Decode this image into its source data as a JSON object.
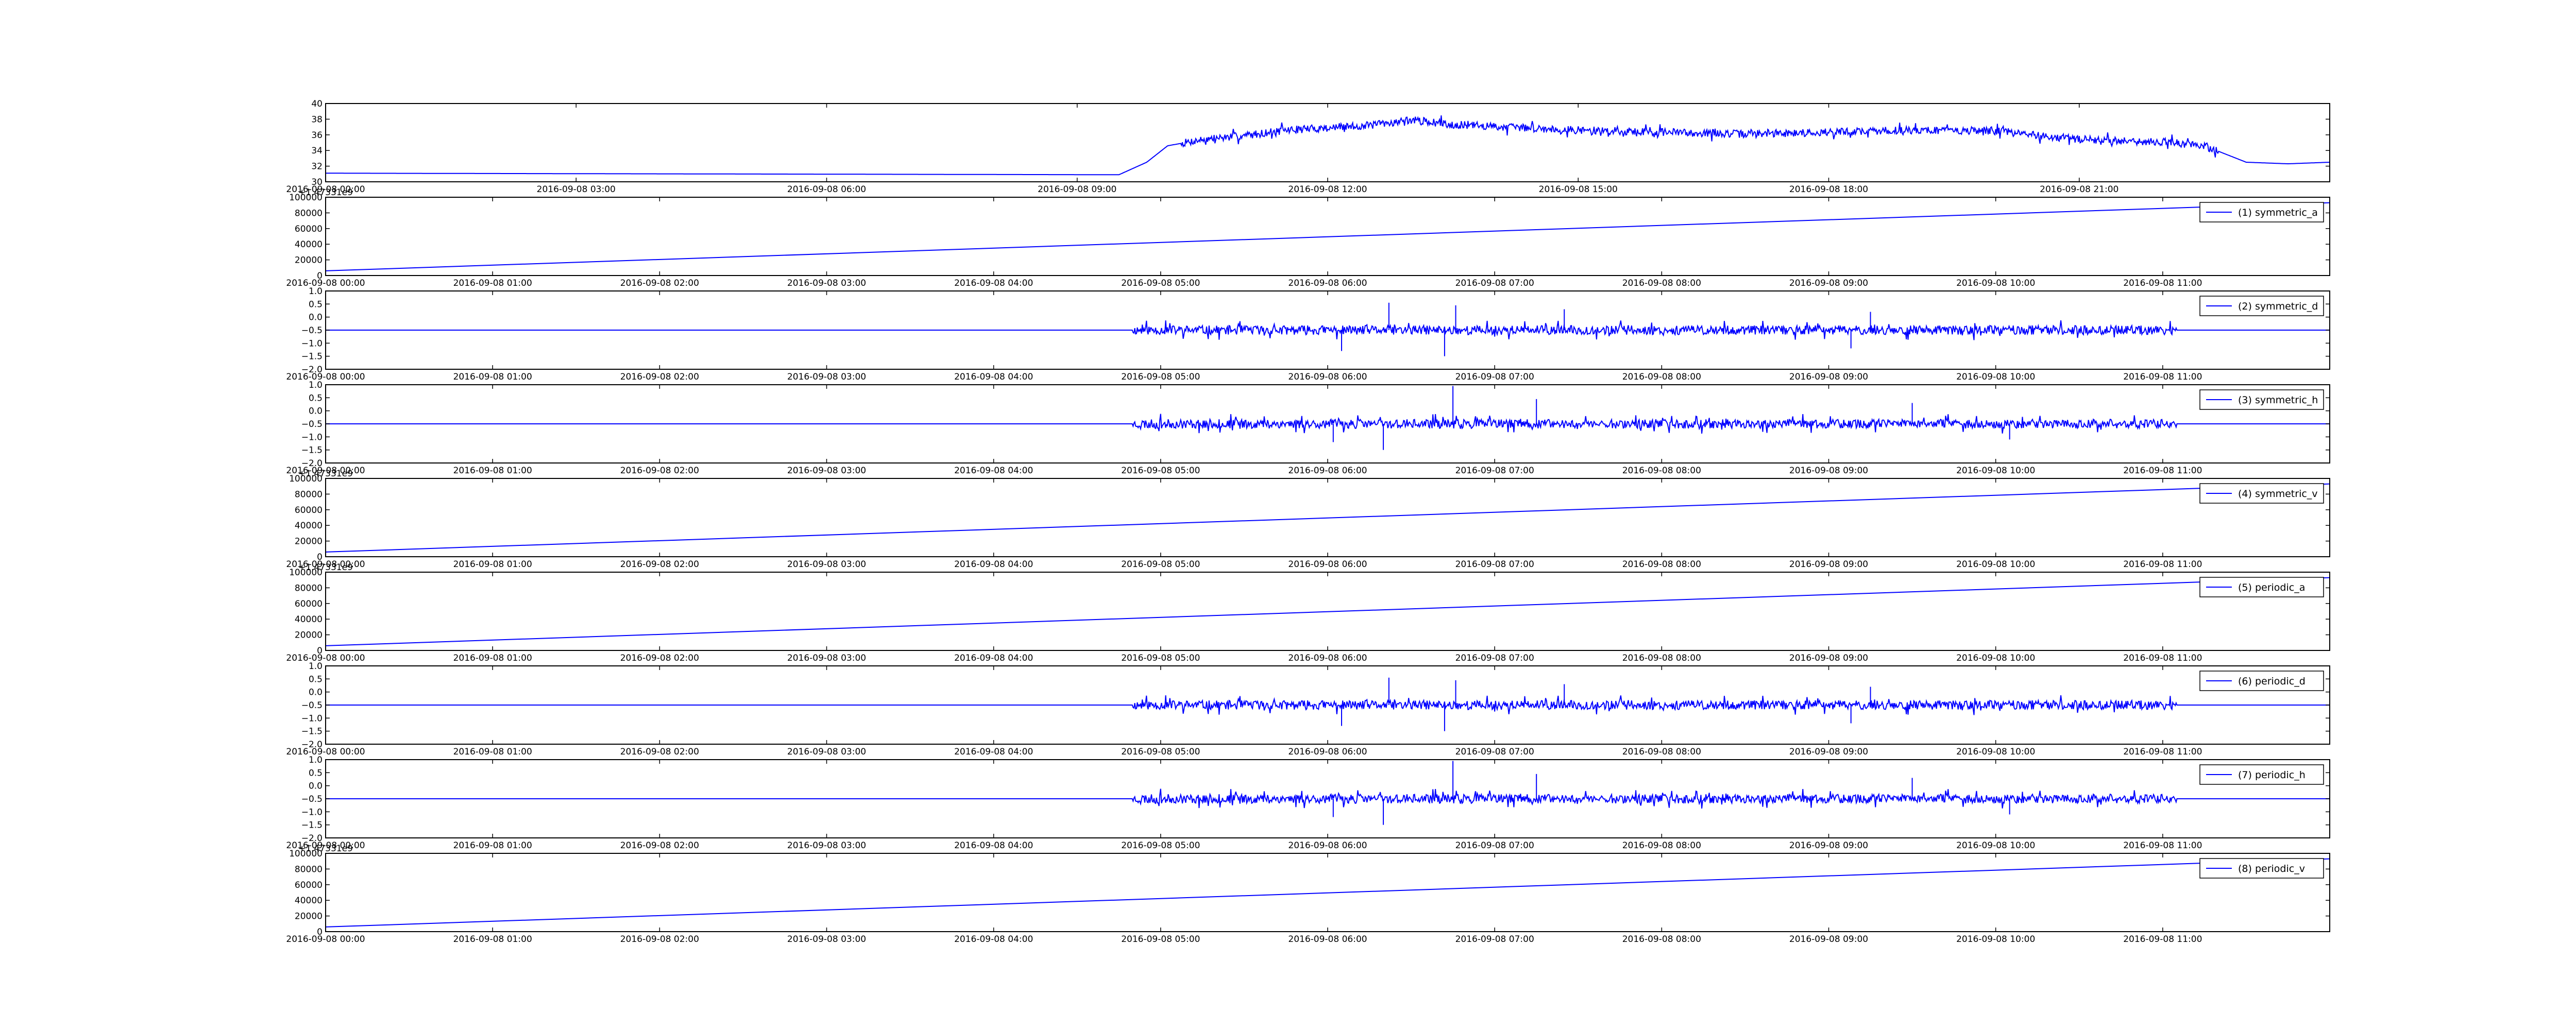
{
  "style": {
    "line_color": "#0000ff",
    "frame_color": "#000000",
    "background": "#ffffff"
  },
  "chart_data": [
    {
      "type": "line",
      "title": "",
      "xlabel": "",
      "ylabel": "",
      "grid": false,
      "legend": null,
      "ylim": [
        30,
        40
      ],
      "yticks": [
        30,
        32,
        34,
        36,
        38,
        40
      ],
      "xlim": [
        "2016-09-08 00:00",
        "2016-09-09 00:00"
      ],
      "xticks": [
        "2016-09-08 00:00",
        "2016-09-08 03:00",
        "2016-09-08 06:00",
        "2016-09-08 09:00",
        "2016-09-08 12:00",
        "2016-09-08 15:00",
        "2016-09-08 18:00",
        "2016-09-08 21:00"
      ],
      "signal": "temperature",
      "points": [
        [
          "2016-09-08 00:00",
          31.1
        ],
        [
          "2016-09-08 09:30",
          30.9
        ],
        [
          "2016-09-08 09:50",
          32.5
        ],
        [
          "2016-09-08 10:05",
          34.6
        ],
        [
          "2016-09-08 10:30",
          35.4
        ],
        [
          "2016-09-08 11:00",
          35.9
        ],
        [
          "2016-09-08 11:30",
          36.6
        ],
        [
          "2016-09-08 12:30",
          37.2
        ],
        [
          "2016-09-08 13:00",
          37.9
        ],
        [
          "2016-09-08 13:30",
          37.3
        ],
        [
          "2016-09-08 15:00",
          36.6
        ],
        [
          "2016-09-08 17:00",
          36.1
        ],
        [
          "2016-09-08 19:00",
          36.6
        ],
        [
          "2016-09-08 20:00",
          36.5
        ],
        [
          "2016-09-08 21:00",
          35.4
        ],
        [
          "2016-09-08 22:00",
          35.1
        ],
        [
          "2016-09-08 22:30",
          34.6
        ],
        [
          "2016-09-08 23:00",
          32.5
        ],
        [
          "2016-09-08 23:30",
          32.3
        ],
        [
          "2016-09-09 00:00",
          32.5
        ]
      ],
      "noise": {
        "start": "2016-09-08 10:15",
        "end": "2016-09-08 22:40",
        "amplitude": 0.9
      }
    },
    {
      "type": "line",
      "grid": false,
      "legend": {
        "label": "(1) symmetric_a",
        "placement": "upper right"
      },
      "offset_text": "+1.47331e9",
      "ylim": [
        0,
        100000
      ],
      "yticks": [
        0,
        20000,
        40000,
        60000,
        80000,
        100000
      ],
      "xlim": [
        "2016-09-08 00:00",
        "2016-09-08 12:00"
      ],
      "xticks": [
        "2016-09-08 00:00",
        "2016-09-08 01:00",
        "2016-09-08 02:00",
        "2016-09-08 03:00",
        "2016-09-08 04:00",
        "2016-09-08 05:00",
        "2016-09-08 06:00",
        "2016-09-08 07:00",
        "2016-09-08 08:00",
        "2016-09-08 09:00",
        "2016-09-08 10:00",
        "2016-09-08 11:00"
      ],
      "signal": "ramp",
      "points": [
        [
          "2016-09-08 00:00",
          6000
        ],
        [
          "2016-09-08 12:00",
          93000
        ]
      ]
    },
    {
      "type": "line",
      "grid": false,
      "legend": {
        "label": "(2) symmetric_d",
        "placement": "upper right"
      },
      "ylim": [
        -2.0,
        1.0
      ],
      "yticks": [
        -2.0,
        -1.5,
        -1.0,
        -0.5,
        0.0,
        0.5,
        1.0
      ],
      "xlim": [
        "2016-09-08 00:00",
        "2016-09-08 12:00"
      ],
      "xticks": [
        "2016-09-08 00:00",
        "2016-09-08 01:00",
        "2016-09-08 02:00",
        "2016-09-08 03:00",
        "2016-09-08 04:00",
        "2016-09-08 05:00",
        "2016-09-08 06:00",
        "2016-09-08 07:00",
        "2016-09-08 08:00",
        "2016-09-08 09:00",
        "2016-09-08 10:00",
        "2016-09-08 11:00"
      ],
      "signal": "coefficients",
      "baseline": -0.5,
      "points": [
        [
          "2016-09-08 00:00",
          -0.5
        ],
        [
          "2016-09-08 12:00",
          -0.5
        ]
      ],
      "noise": {
        "start": "2016-09-08 04:50",
        "end": "2016-09-08 11:05",
        "amplitude": 0.35,
        "seed": 11
      },
      "spikes": [
        [
          "2016-09-08 06:05",
          -1.3
        ],
        [
          "2016-09-08 06:22",
          0.55
        ],
        [
          "2016-09-08 06:42",
          -1.5
        ],
        [
          "2016-09-08 06:46",
          0.45
        ],
        [
          "2016-09-08 07:25",
          0.3
        ],
        [
          "2016-09-08 09:15",
          0.2
        ],
        [
          "2016-09-08 09:08",
          -1.2
        ]
      ]
    },
    {
      "type": "line",
      "grid": false,
      "legend": {
        "label": "(3) symmetric_h",
        "placement": "upper right"
      },
      "ylim": [
        -2.0,
        1.0
      ],
      "yticks": [
        -2.0,
        -1.5,
        -1.0,
        -0.5,
        0.0,
        0.5,
        1.0
      ],
      "xlim": [
        "2016-09-08 00:00",
        "2016-09-08 12:00"
      ],
      "xticks": [
        "2016-09-08 00:00",
        "2016-09-08 01:00",
        "2016-09-08 02:00",
        "2016-09-08 03:00",
        "2016-09-08 04:00",
        "2016-09-08 05:00",
        "2016-09-08 06:00",
        "2016-09-08 07:00",
        "2016-09-08 08:00",
        "2016-09-08 09:00",
        "2016-09-08 10:00",
        "2016-09-08 11:00"
      ],
      "signal": "coefficients",
      "baseline": -0.5,
      "points": [
        [
          "2016-09-08 00:00",
          -0.5
        ],
        [
          "2016-09-08 12:00",
          -0.5
        ]
      ],
      "noise": {
        "start": "2016-09-08 04:50",
        "end": "2016-09-08 11:05",
        "amplitude": 0.35,
        "seed": 23
      },
      "spikes": [
        [
          "2016-09-08 06:45",
          0.95
        ],
        [
          "2016-09-08 06:02",
          -1.2
        ],
        [
          "2016-09-08 06:20",
          -1.5
        ],
        [
          "2016-09-08 07:15",
          0.45
        ],
        [
          "2016-09-08 09:30",
          0.3
        ],
        [
          "2016-09-08 10:05",
          -1.1
        ]
      ]
    },
    {
      "type": "line",
      "grid": false,
      "legend": {
        "label": "(4) symmetric_v",
        "placement": "upper right"
      },
      "offset_text": "+1.47331e9",
      "ylim": [
        0,
        100000
      ],
      "yticks": [
        0,
        20000,
        40000,
        60000,
        80000,
        100000
      ],
      "xlim": [
        "2016-09-08 00:00",
        "2016-09-08 12:00"
      ],
      "xticks": [
        "2016-09-08 00:00",
        "2016-09-08 01:00",
        "2016-09-08 02:00",
        "2016-09-08 03:00",
        "2016-09-08 04:00",
        "2016-09-08 05:00",
        "2016-09-08 06:00",
        "2016-09-08 07:00",
        "2016-09-08 08:00",
        "2016-09-08 09:00",
        "2016-09-08 10:00",
        "2016-09-08 11:00"
      ],
      "signal": "ramp",
      "points": [
        [
          "2016-09-08 00:00",
          6000
        ],
        [
          "2016-09-08 12:00",
          93000
        ]
      ]
    },
    {
      "type": "line",
      "grid": false,
      "legend": {
        "label": "(5) periodic_a",
        "placement": "upper right"
      },
      "offset_text": "+1.47331e9",
      "ylim": [
        0,
        100000
      ],
      "yticks": [
        0,
        20000,
        40000,
        60000,
        80000,
        100000
      ],
      "xlim": [
        "2016-09-08 00:00",
        "2016-09-08 12:00"
      ],
      "xticks": [
        "2016-09-08 00:00",
        "2016-09-08 01:00",
        "2016-09-08 02:00",
        "2016-09-08 03:00",
        "2016-09-08 04:00",
        "2016-09-08 05:00",
        "2016-09-08 06:00",
        "2016-09-08 07:00",
        "2016-09-08 08:00",
        "2016-09-08 09:00",
        "2016-09-08 10:00",
        "2016-09-08 11:00"
      ],
      "signal": "ramp",
      "points": [
        [
          "2016-09-08 00:00",
          6000
        ],
        [
          "2016-09-08 12:00",
          93000
        ]
      ]
    },
    {
      "type": "line",
      "grid": false,
      "legend": {
        "label": "(6) periodic_d",
        "placement": "upper right"
      },
      "ylim": [
        -2.0,
        1.0
      ],
      "yticks": [
        -2.0,
        -1.5,
        -1.0,
        -0.5,
        0.0,
        0.5,
        1.0
      ],
      "xlim": [
        "2016-09-08 00:00",
        "2016-09-08 12:00"
      ],
      "xticks": [
        "2016-09-08 00:00",
        "2016-09-08 01:00",
        "2016-09-08 02:00",
        "2016-09-08 03:00",
        "2016-09-08 04:00",
        "2016-09-08 05:00",
        "2016-09-08 06:00",
        "2016-09-08 07:00",
        "2016-09-08 08:00",
        "2016-09-08 09:00",
        "2016-09-08 10:00",
        "2016-09-08 11:00"
      ],
      "signal": "coefficients",
      "baseline": -0.5,
      "points": [
        [
          "2016-09-08 00:00",
          -0.5
        ],
        [
          "2016-09-08 12:00",
          -0.5
        ]
      ],
      "noise": {
        "start": "2016-09-08 04:50",
        "end": "2016-09-08 11:05",
        "amplitude": 0.35,
        "seed": 11
      },
      "spikes": [
        [
          "2016-09-08 06:05",
          -1.3
        ],
        [
          "2016-09-08 06:22",
          0.55
        ],
        [
          "2016-09-08 06:42",
          -1.5
        ],
        [
          "2016-09-08 06:46",
          0.45
        ],
        [
          "2016-09-08 07:25",
          0.3
        ],
        [
          "2016-09-08 09:15",
          0.2
        ],
        [
          "2016-09-08 09:08",
          -1.2
        ]
      ]
    },
    {
      "type": "line",
      "grid": false,
      "legend": {
        "label": "(7) periodic_h",
        "placement": "upper right"
      },
      "ylim": [
        -2.0,
        1.0
      ],
      "yticks": [
        -2.0,
        -1.5,
        -1.0,
        -0.5,
        0.0,
        0.5,
        1.0
      ],
      "xlim": [
        "2016-09-08 00:00",
        "2016-09-08 12:00"
      ],
      "xticks": [
        "2016-09-08 00:00",
        "2016-09-08 01:00",
        "2016-09-08 02:00",
        "2016-09-08 03:00",
        "2016-09-08 04:00",
        "2016-09-08 05:00",
        "2016-09-08 06:00",
        "2016-09-08 07:00",
        "2016-09-08 08:00",
        "2016-09-08 09:00",
        "2016-09-08 10:00",
        "2016-09-08 11:00"
      ],
      "signal": "coefficients",
      "baseline": -0.5,
      "points": [
        [
          "2016-09-08 00:00",
          -0.5
        ],
        [
          "2016-09-08 12:00",
          -0.5
        ]
      ],
      "noise": {
        "start": "2016-09-08 04:50",
        "end": "2016-09-08 11:05",
        "amplitude": 0.35,
        "seed": 23
      },
      "spikes": [
        [
          "2016-09-08 06:45",
          0.95
        ],
        [
          "2016-09-08 06:02",
          -1.2
        ],
        [
          "2016-09-08 06:20",
          -1.5
        ],
        [
          "2016-09-08 07:15",
          0.45
        ],
        [
          "2016-09-08 09:30",
          0.3
        ],
        [
          "2016-09-08 10:05",
          -1.1
        ]
      ]
    },
    {
      "type": "line",
      "grid": false,
      "legend": {
        "label": "(8) periodic_v",
        "placement": "upper right"
      },
      "offset_text": "+1.47331e9",
      "ylim": [
        0,
        100000
      ],
      "yticks": [
        0,
        20000,
        40000,
        60000,
        80000,
        100000
      ],
      "xlim": [
        "2016-09-08 00:00",
        "2016-09-08 12:00"
      ],
      "xticks": [
        "2016-09-08 00:00",
        "2016-09-08 01:00",
        "2016-09-08 02:00",
        "2016-09-08 03:00",
        "2016-09-08 04:00",
        "2016-09-08 05:00",
        "2016-09-08 06:00",
        "2016-09-08 07:00",
        "2016-09-08 08:00",
        "2016-09-08 09:00",
        "2016-09-08 10:00",
        "2016-09-08 11:00"
      ],
      "signal": "ramp",
      "points": [
        [
          "2016-09-08 00:00",
          6000
        ],
        [
          "2016-09-08 12:00",
          93000
        ]
      ]
    }
  ]
}
